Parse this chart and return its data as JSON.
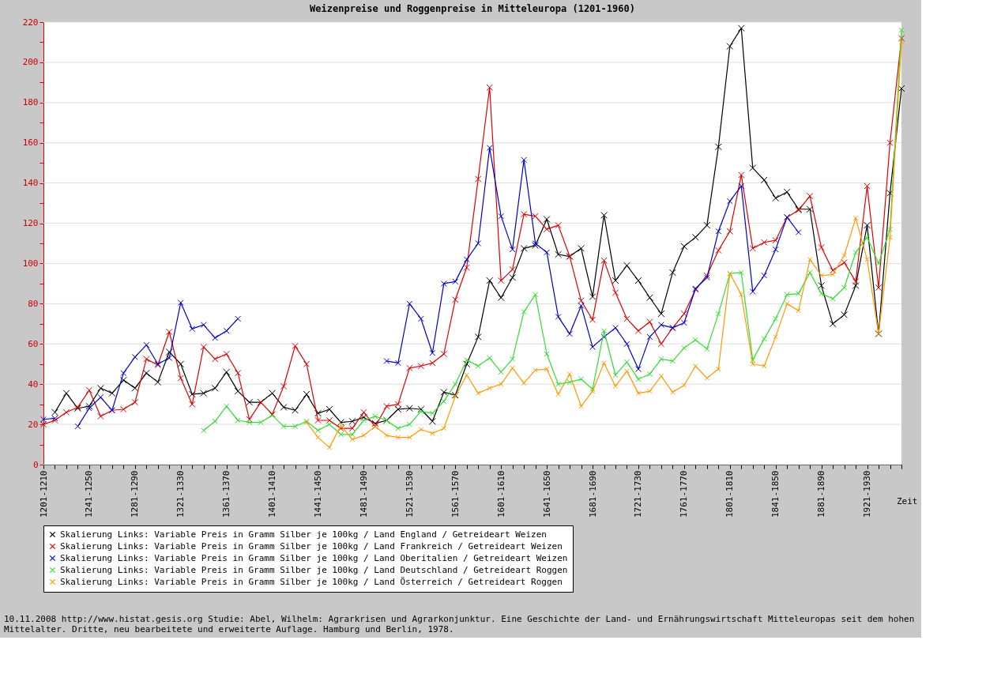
{
  "chart_data": {
    "type": "line",
    "title": "Weizenpreise und Roggenpreise in Mitteleuropa (1201-1960)",
    "xlabel": "Zeit",
    "categories": [
      "1201-1210",
      null,
      null,
      null,
      "1241-1250",
      null,
      null,
      null,
      "1281-1290",
      null,
      null,
      null,
      "1321-1330",
      null,
      null,
      null,
      "1361-1370",
      null,
      null,
      null,
      "1401-1410",
      null,
      null,
      null,
      "1441-1450",
      null,
      null,
      null,
      "1481-1490",
      null,
      null,
      null,
      "1521-1530",
      null,
      null,
      null,
      "1561-1570",
      null,
      null,
      null,
      "1601-1610",
      null,
      null,
      null,
      "1641-1650",
      null,
      null,
      null,
      "1681-1690",
      null,
      null,
      null,
      "1721-1730",
      null,
      null,
      null,
      "1761-1770",
      null,
      null,
      null,
      "1801-1810",
      null,
      null,
      null,
      "1841-1850",
      null,
      null,
      null,
      "1881-1890",
      null,
      null,
      null,
      "1921-1930",
      null,
      null,
      null
    ],
    "series": [
      {
        "name": "Skalierung Links: Variable Preis in Gramm Silber je 100kg / Land England / Getreideart Weizen",
        "color": "#000000",
        "values": [
          null,
          26,
          35.5,
          28,
          29,
          38,
          35.5,
          42,
          38,
          45.5,
          41,
          56,
          50,
          35,
          35.5,
          38,
          46,
          36.5,
          31,
          31,
          35.5,
          28.5,
          27,
          35,
          25.5,
          27.5,
          21,
          21.5,
          23.5,
          20.5,
          22,
          27.5,
          28,
          27.5,
          21.5,
          36,
          34.5,
          50,
          63.5,
          91.5,
          83,
          93,
          107.5,
          109,
          122,
          104.5,
          103.5,
          107.5,
          83.5,
          124,
          91.5,
          99,
          91.5,
          83,
          75,
          95.5,
          108.5,
          113,
          119,
          158,
          208,
          217,
          147.5,
          141.5,
          132.5,
          135.5,
          127,
          127,
          89,
          70,
          74.5,
          89,
          119,
          65,
          135,
          187
        ]
      },
      {
        "name": "Skalierung Links: Variable Preis in Gramm Silber je 100kg / Land Frankreich / Getreideart Weizen",
        "color": "#dd0000",
        "values": [
          20,
          22,
          26,
          28.5,
          37,
          24,
          27,
          27.5,
          31,
          52.5,
          49.5,
          66,
          43,
          30,
          58.5,
          52.5,
          55,
          45.5,
          22.5,
          31,
          25,
          39,
          59,
          50,
          22,
          22,
          18,
          18,
          26,
          19,
          29,
          30,
          48,
          49,
          50.5,
          55,
          82,
          98,
          142,
          187.5,
          91.5,
          97,
          124.5,
          123.5,
          117,
          119,
          103.5,
          81.5,
          72,
          101.5,
          85.5,
          72.5,
          66.5,
          71,
          60,
          68,
          75,
          87,
          94,
          106.5,
          116,
          144,
          107.5,
          110.5,
          111.5,
          123,
          126.5,
          133.5,
          108,
          96.5,
          100.5,
          91,
          138.5,
          88,
          160,
          212
        ]
      },
      {
        "name": "Skalierung Links: Variable Preis in Gramm Silber je 100kg / Land Oberitalien / Getreideart Weizen",
        "color": "#0000cc",
        "values": [
          22.5,
          23,
          null,
          19,
          28,
          33.5,
          27,
          45.5,
          53.5,
          59.5,
          50,
          53,
          80.5,
          67.5,
          69.5,
          63,
          66.5,
          72.5,
          null,
          null,
          null,
          null,
          null,
          null,
          null,
          null,
          null,
          null,
          null,
          null,
          51.5,
          50.5,
          80,
          72.5,
          55.5,
          90,
          91,
          102,
          110,
          157.5,
          123.5,
          107,
          151.5,
          110,
          105.5,
          73.5,
          65,
          79,
          58.5,
          63.5,
          68,
          60,
          47.5,
          63.5,
          69.5,
          68,
          70.5,
          87.5,
          93,
          116,
          131,
          138.5,
          86,
          94,
          107,
          123,
          115.5,
          null,
          null,
          null,
          null,
          null,
          null,
          null,
          null,
          null
        ]
      },
      {
        "name": "Skalierung Links: Variable Preis in Gramm Silber je 100kg / Land Deutschland / Getreideart Roggen",
        "color": "#33dd33",
        "values": [
          null,
          null,
          null,
          null,
          null,
          null,
          null,
          null,
          null,
          null,
          null,
          null,
          null,
          null,
          17,
          21.5,
          29,
          22,
          21,
          21,
          24.5,
          19,
          19,
          21.5,
          17,
          20,
          15,
          15,
          22,
          24,
          22,
          18,
          20,
          26.5,
          25.5,
          31.5,
          40,
          52,
          49,
          53,
          46,
          52.5,
          76,
          84.5,
          55,
          40,
          41,
          42.5,
          37.5,
          66.5,
          44.5,
          51,
          42.5,
          45,
          52.5,
          51.5,
          58,
          62,
          57.5,
          75,
          95,
          95.5,
          52,
          62.5,
          72.5,
          84.5,
          85,
          95.5,
          85,
          82.5,
          88,
          105.5,
          113,
          100,
          117,
          216
        ]
      },
      {
        "name": "Skalierung Links: Variable Preis in Gramm Silber je 100kg / Land Österreich / Getreideart Roggen",
        "color": "#ff9900",
        "values": [
          null,
          null,
          null,
          null,
          null,
          null,
          null,
          null,
          null,
          null,
          null,
          null,
          null,
          null,
          null,
          null,
          null,
          null,
          null,
          null,
          null,
          null,
          null,
          21,
          13.5,
          8.5,
          19.5,
          12.5,
          14.5,
          19,
          14.5,
          13.5,
          13.5,
          17.5,
          15.5,
          18,
          34,
          44.5,
          35.5,
          38,
          40,
          48,
          40.5,
          47,
          47.5,
          35,
          45,
          29,
          36.5,
          50.5,
          39,
          46.5,
          35.5,
          36.5,
          44,
          36,
          39.5,
          49,
          43,
          47.5,
          95,
          84.5,
          50,
          49,
          63.5,
          80,
          76.5,
          102,
          94,
          94.5,
          104,
          122.5,
          102,
          65,
          113,
          210
        ]
      }
    ],
    "ylim": [
      0,
      220
    ],
    "yticks": [
      0,
      {
        "value": 10,
        "label": null
      },
      20,
      {
        "value": 30,
        "label": null
      },
      40,
      {
        "value": 50,
        "label": null
      },
      60,
      {
        "value": 70,
        "label": null
      },
      80,
      {
        "value": 90,
        "label": null
      },
      100,
      {
        "value": 110,
        "label": null
      },
      120,
      {
        "value": 130,
        "label": null
      },
      140,
      {
        "value": 150,
        "label": null
      },
      160,
      {
        "value": 170,
        "label": null
      },
      180,
      {
        "value": 190,
        "label": null
      },
      200,
      {
        "value": 210,
        "label": null
      },
      220
    ],
    "grid": "y",
    "legend": "bottom",
    "marker": "cross",
    "line_style": "solid",
    "annotations": [
      "10.11.2008 http://www.histat.gesis.org Studie: Abel, Wilhelm: Agrarkrisen und Agrarkonjunktur. Eine Geschichte der Land- und Ernährungswirtschaft Mitteleuropas seit dem hohen Mittelalter. Dritte, neu bearbeitete und erweiterte Auflage. Hamburg und Berlin, 1978."
    ]
  }
}
